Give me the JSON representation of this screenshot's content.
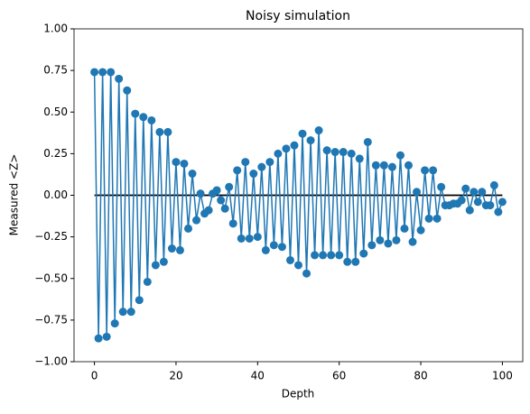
{
  "chart_data": {
    "type": "line",
    "title": "Noisy simulation",
    "xlabel": "Depth",
    "ylabel": "Measured <Z>",
    "x": [
      0,
      1,
      2,
      3,
      4,
      5,
      6,
      7,
      8,
      9,
      10,
      11,
      12,
      13,
      14,
      15,
      16,
      17,
      18,
      19,
      20,
      21,
      22,
      23,
      24,
      25,
      26,
      27,
      28,
      29,
      30,
      31,
      32,
      33,
      34,
      35,
      36,
      37,
      38,
      39,
      40,
      41,
      42,
      43,
      44,
      45,
      46,
      47,
      48,
      49,
      50,
      51,
      52,
      53,
      54,
      55,
      56,
      57,
      58,
      59,
      60,
      61,
      62,
      63,
      64,
      65,
      66,
      67,
      68,
      69,
      70,
      71,
      72,
      73,
      74,
      75,
      76,
      77,
      78,
      79,
      80,
      81,
      82,
      83,
      84,
      85,
      86,
      87,
      88,
      89,
      90,
      91,
      92,
      93,
      94,
      95,
      96,
      97,
      98,
      99,
      100
    ],
    "series": [
      {
        "color": "#1f77b4",
        "values": [
          0.74,
          -0.86,
          0.74,
          -0.85,
          0.74,
          -0.77,
          0.7,
          -0.7,
          0.63,
          -0.7,
          0.49,
          -0.63,
          0.47,
          -0.52,
          0.45,
          -0.42,
          0.38,
          -0.4,
          0.38,
          -0.32,
          0.2,
          -0.33,
          0.19,
          -0.2,
          0.13,
          -0.15,
          0.01,
          -0.11,
          -0.09,
          0.01,
          0.03,
          -0.03,
          -0.08,
          0.05,
          -0.17,
          0.15,
          -0.26,
          0.2,
          -0.26,
          0.13,
          -0.25,
          0.17,
          -0.33,
          0.2,
          -0.3,
          0.25,
          -0.31,
          0.28,
          -0.39,
          0.3,
          -0.42,
          0.37,
          -0.47,
          0.33,
          -0.36,
          0.39,
          -0.36,
          0.27,
          -0.36,
          0.26,
          -0.36,
          0.26,
          -0.4,
          0.25,
          -0.4,
          0.22,
          -0.35,
          0.32,
          -0.3,
          0.18,
          -0.27,
          0.18,
          -0.29,
          0.17,
          -0.27,
          0.24,
          -0.2,
          0.18,
          -0.28,
          0.02,
          -0.21,
          0.15,
          -0.14,
          0.15,
          -0.14,
          0.05,
          -0.06,
          -0.06,
          -0.05,
          -0.05,
          -0.03,
          0.04,
          -0.09,
          0.02,
          -0.04,
          0.02,
          -0.06,
          -0.06,
          0.06,
          -0.1,
          -0.04
        ]
      }
    ],
    "hline": {
      "y": 0,
      "color": "#000000"
    },
    "xlim": [
      -5,
      105
    ],
    "xticks": [
      0,
      20,
      40,
      60,
      80,
      100
    ],
    "ylim": [
      -1,
      1
    ],
    "yticks": [
      {
        "value": -1,
        "label": "−1.00"
      },
      {
        "value": -0.75,
        "label": "−0.75"
      },
      {
        "value": -0.5,
        "label": "−0.50"
      },
      {
        "value": -0.25,
        "label": "−0.25"
      },
      {
        "value": 0,
        "label": "0.00"
      },
      {
        "value": 0.25,
        "label": "0.25"
      },
      {
        "value": 0.5,
        "label": "0.50"
      },
      {
        "value": 0.75,
        "label": "0.75"
      },
      {
        "value": 1,
        "label": "1.00"
      }
    ],
    "grid": false
  }
}
